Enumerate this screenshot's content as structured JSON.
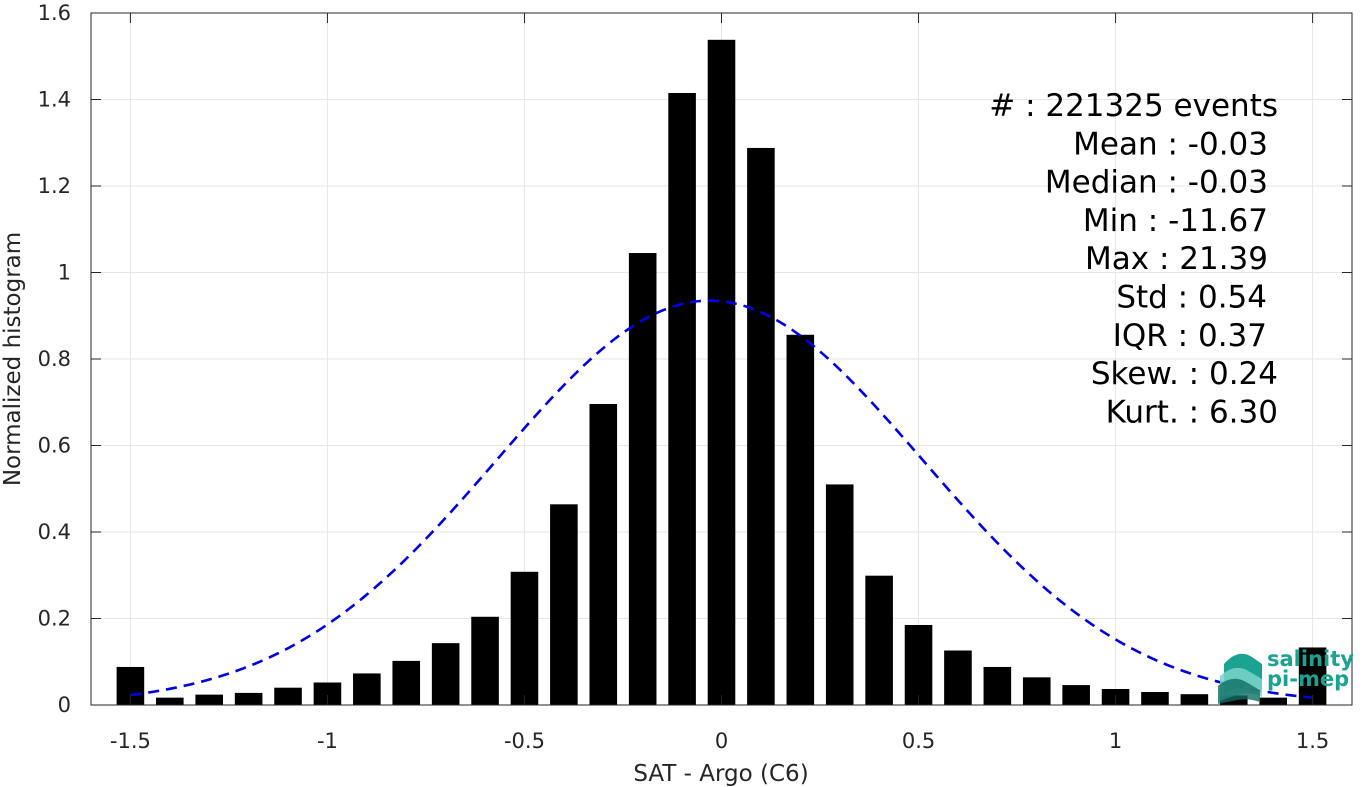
{
  "chart_data": {
    "type": "bar",
    "xlabel": "SAT - Argo (C6)",
    "ylabel": "Normalized histogram",
    "xlim": [
      -1.6,
      1.6
    ],
    "ylim": [
      0,
      1.6
    ],
    "xticks": [
      -1.5,
      -1,
      -0.5,
      0,
      0.5,
      1,
      1.5
    ],
    "xtick_labels": [
      "-1.5",
      "-1",
      "-0.5",
      "0",
      "0.5",
      "1",
      "1.5"
    ],
    "yticks": [
      0,
      0.2,
      0.4,
      0.6,
      0.8,
      1,
      1.2,
      1.4,
      1.6
    ],
    "ytick_labels": [
      "0",
      "0.2",
      "0.4",
      "0.6",
      "0.8",
      "1",
      "1.2",
      "1.4",
      "1.6"
    ],
    "grid": true,
    "bar_color": "#000000",
    "bar_width": 0.07,
    "series": [
      {
        "x": [
          -1.5,
          -1.4,
          -1.3,
          -1.2,
          -1.1,
          -1.0,
          -0.9,
          -0.8,
          -0.7,
          -0.6,
          -0.5,
          -0.4,
          -0.3,
          -0.2,
          -0.1,
          0.0,
          0.1,
          0.2,
          0.3,
          0.4,
          0.5,
          0.6,
          0.7,
          0.8,
          0.9,
          1.0,
          1.1,
          1.2,
          1.3,
          1.4,
          1.5
        ],
        "values": [
          0.088,
          0.017,
          0.024,
          0.028,
          0.04,
          0.052,
          0.073,
          0.102,
          0.143,
          0.204,
          0.308,
          0.464,
          0.696,
          1.045,
          1.415,
          1.538,
          1.288,
          0.856,
          0.51,
          0.299,
          0.185,
          0.126,
          0.088,
          0.064,
          0.046,
          0.037,
          0.03,
          0.025,
          0.022,
          0.017,
          0.133
        ]
      }
    ],
    "fit_curve": {
      "style": "dashed",
      "color": "#0000e6",
      "mean": -0.03,
      "std": 0.54,
      "peak": 0.935
    },
    "annotations": [
      "#  : 221325 events",
      "Mean : -0.03",
      "Median : -0.03",
      "Min : -11.67",
      "Max : 21.39",
      "Std : 0.54",
      "IQR : 0.37",
      "Skew. : 0.24",
      "Kurt. : 6.30"
    ]
  },
  "logo": {
    "line1": "salinity",
    "line2": "pi-mep",
    "color": "#1aa391"
  }
}
